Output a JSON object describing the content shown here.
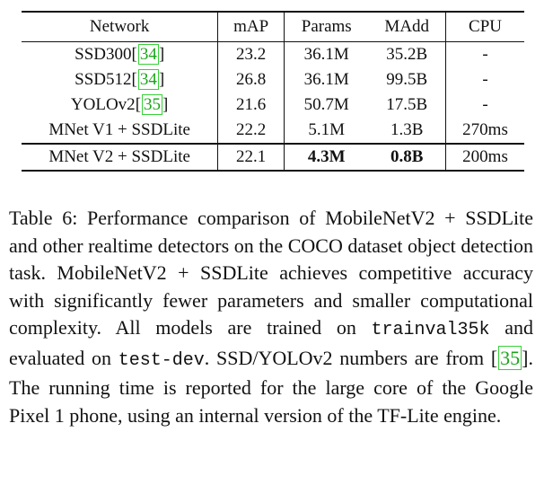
{
  "table": {
    "headers": [
      "Network",
      "mAP",
      "Params",
      "MAdd",
      "CPU"
    ],
    "rows": [
      {
        "network": "SSD300",
        "cite": "34",
        "map": "23.2",
        "params": "36.1M",
        "madd": "35.2B",
        "cpu": "-"
      },
      {
        "network": "SSD512",
        "cite": "34",
        "map": "26.8",
        "params": "36.1M",
        "madd": "99.5B",
        "cpu": "-"
      },
      {
        "network": "YOLOv2",
        "cite": "35",
        "map": "21.6",
        "params": "50.7M",
        "madd": "17.5B",
        "cpu": "-"
      },
      {
        "network": "MNet V1 + SSDLite",
        "map": "22.2",
        "params": "5.1M",
        "madd": "1.3B",
        "cpu": "270ms"
      },
      {
        "network": "MNet V2 + SSDLite",
        "map": "22.1",
        "params": "4.3M",
        "madd": "0.8B",
        "cpu": "200ms"
      }
    ]
  },
  "caption": {
    "part1": "Table 6: Performance comparison of MobileNetV2 + SSDLite and other realtime detectors on the COCO dataset object detection task. MobileNetV2 + SSDLite achieves competitive accuracy with significantly fewer parameters and smaller computational complexity. All models are trained on ",
    "code1": "trainval35k",
    "part2": " and evaluated on ",
    "code2": "test-dev",
    "part3": ". SSD/YOLOv2 numbers are from ",
    "cite": "35",
    "part4": ". The running time is reported for the large core of the Google Pixel 1 phone, using an internal version of the TF-Lite engine."
  }
}
